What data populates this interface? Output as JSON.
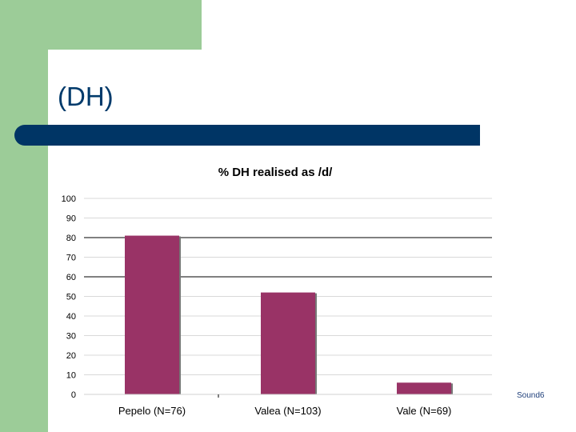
{
  "slide": {
    "title": "(DH)",
    "footer": "Sound6"
  },
  "colors": {
    "green": "#9ccc98",
    "navy": "#003565",
    "bar": "#993366"
  },
  "chart_data": {
    "type": "bar",
    "title": "% DH realised as /d/",
    "categories": [
      "Pepelo (N=76)",
      "Valea (N=103)",
      "Vale (N=69)"
    ],
    "values": [
      81,
      52,
      6
    ],
    "ylim": [
      0,
      100
    ],
    "yticks": [
      0,
      10,
      20,
      30,
      40,
      50,
      60,
      70,
      80,
      90,
      100
    ],
    "xlabel": "",
    "ylabel": "",
    "grid": "major gridlines at 80 and 60"
  }
}
